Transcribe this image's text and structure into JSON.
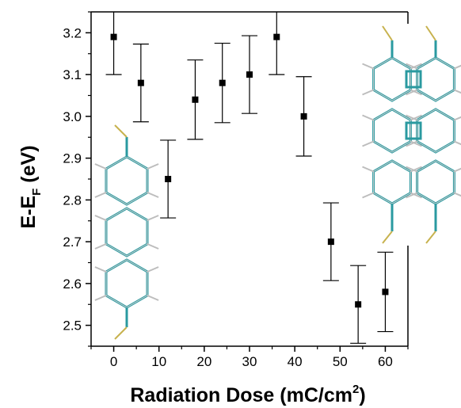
{
  "chart_data": {
    "type": "scatter",
    "xlabel": "Radiation Dose (mC/cm",
    "xlabel_sup": "2",
    "xlabel_end": ")",
    "ylabel_main": "E-E",
    "ylabel_sub": "F",
    "ylabel_end": " (eV)",
    "xlim": [
      -5,
      65
    ],
    "ylim": [
      2.45,
      3.25
    ],
    "x_ticks": [
      "0",
      "10",
      "20",
      "30",
      "40",
      "50",
      "60"
    ],
    "y_ticks": [
      "2.5",
      "2.6",
      "2.7",
      "2.8",
      "2.9",
      "3.0",
      "3.1",
      "3.2"
    ],
    "grid": false,
    "legend": "none",
    "series": [
      {
        "marker_color": "#000000",
        "points": [
          {
            "x": 0,
            "y": 3.19,
            "err": 0.09
          },
          {
            "x": 6,
            "y": 3.08,
            "err": 0.093
          },
          {
            "x": 12,
            "y": 2.85,
            "err": 0.093
          },
          {
            "x": 18,
            "y": 3.04,
            "err": 0.095
          },
          {
            "x": 24,
            "y": 3.08,
            "err": 0.095
          },
          {
            "x": 30,
            "y": 3.1,
            "err": 0.093
          },
          {
            "x": 36,
            "y": 3.19,
            "err": 0.09
          },
          {
            "x": 42,
            "y": 3.0,
            "err": 0.095
          },
          {
            "x": 48,
            "y": 2.7,
            "err": 0.093
          },
          {
            "x": 54,
            "y": 2.55,
            "err": 0.093
          },
          {
            "x": 60,
            "y": 2.58,
            "err": 0.095
          }
        ]
      }
    ],
    "insets": [
      {
        "icon": "terphenyl-molecule-icon",
        "bond_color": "#2a9aa0"
      },
      {
        "icon": "coupled-polycyclic-molecule-icon",
        "bond_color": "#2a9aa0"
      }
    ]
  }
}
